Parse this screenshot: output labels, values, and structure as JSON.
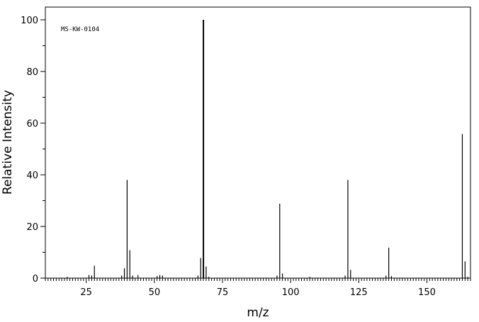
{
  "chart_data": {
    "type": "bar",
    "annotation": "MS-KW-0104",
    "xlabel": "m/z",
    "ylabel": "Relative Intensity",
    "xlim": [
      10,
      166
    ],
    "ylim": [
      0,
      100
    ],
    "x_ticks": [
      "25",
      "50",
      "75",
      "100",
      "125",
      "150"
    ],
    "y_ticks": [
      "0",
      "20",
      "40",
      "60",
      "80",
      "100"
    ],
    "grid": false,
    "peaks": [
      {
        "mz": 18,
        "intensity": 0.5
      },
      {
        "mz": 26,
        "intensity": 1.2
      },
      {
        "mz": 27,
        "intensity": 1.0
      },
      {
        "mz": 28,
        "intensity": 4.8
      },
      {
        "mz": 38,
        "intensity": 1.0
      },
      {
        "mz": 39,
        "intensity": 3.8
      },
      {
        "mz": 40,
        "intensity": 38.0
      },
      {
        "mz": 41,
        "intensity": 10.8
      },
      {
        "mz": 42,
        "intensity": 1.0
      },
      {
        "mz": 44,
        "intensity": 1.2
      },
      {
        "mz": 51,
        "intensity": 0.8
      },
      {
        "mz": 52,
        "intensity": 1.2
      },
      {
        "mz": 53,
        "intensity": 1.0
      },
      {
        "mz": 66,
        "intensity": 1.0
      },
      {
        "mz": 67,
        "intensity": 7.8
      },
      {
        "mz": 68,
        "intensity": 100.0
      },
      {
        "mz": 69,
        "intensity": 4.5
      },
      {
        "mz": 70,
        "intensity": 0.5
      },
      {
        "mz": 95,
        "intensity": 1.0
      },
      {
        "mz": 96,
        "intensity": 28.8
      },
      {
        "mz": 97,
        "intensity": 1.8
      },
      {
        "mz": 107,
        "intensity": 0.5
      },
      {
        "mz": 120,
        "intensity": 1.0
      },
      {
        "mz": 121,
        "intensity": 38.0
      },
      {
        "mz": 122,
        "intensity": 3.2
      },
      {
        "mz": 135,
        "intensity": 1.0
      },
      {
        "mz": 136,
        "intensity": 11.8
      },
      {
        "mz": 137,
        "intensity": 0.8
      },
      {
        "mz": 163,
        "intensity": 55.8
      },
      {
        "mz": 164,
        "intensity": 6.5
      },
      {
        "mz": 165,
        "intensity": 0.5
      }
    ]
  }
}
